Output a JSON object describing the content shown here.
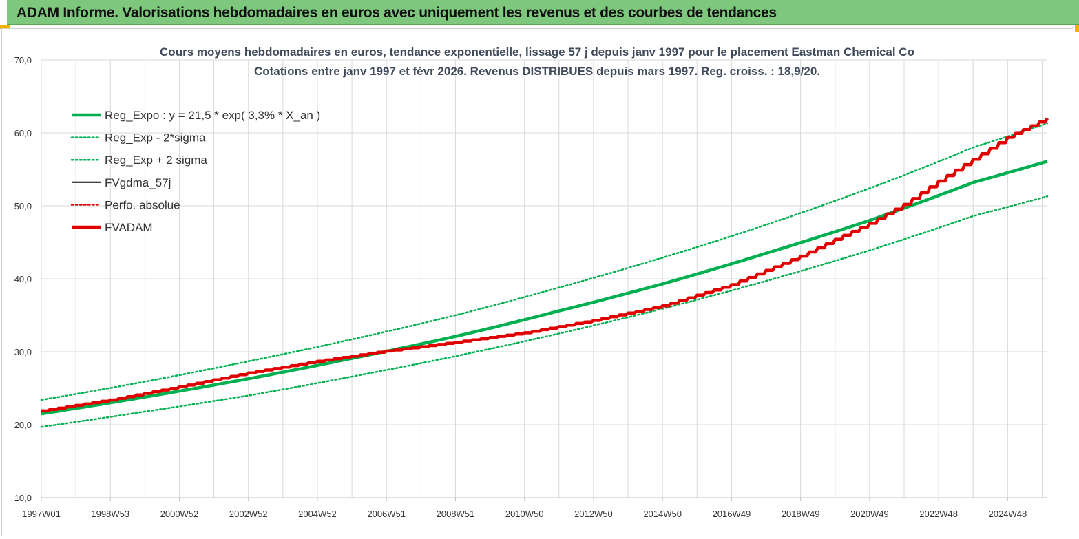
{
  "banner": {
    "title": "ADAM Informe. Valorisations hebdomadaires en euros avec uniquement les revenus et des courbes de tendances"
  },
  "colors": {
    "banner": "#7dc87c",
    "green": "#00b050",
    "red": "#e00000",
    "black": "#000000",
    "grid": "#d9d9d9"
  },
  "chart_data": {
    "type": "line",
    "title_lines": [
      "Cours moyens hebdomadaires en euros, tendance exponentielle, lissage 57 j depuis janv 1997 pour le placement Eastman Chemical Co",
      "Cotations entre janv 1997 et févr 2026. Revenus DISTRIBUES depuis mars 1997. Reg. croiss. : 18,9/20."
    ],
    "x_range": [
      1997.0,
      2026.15
    ],
    "ylim": [
      10,
      70
    ],
    "y_ticks": [
      "10,0",
      "20,0",
      "30,0",
      "40,0",
      "50,0",
      "60,0",
      "70,0"
    ],
    "x_ticks": [
      {
        "label": "1997W01",
        "x": 1997.0
      },
      {
        "label": "1998W53",
        "x": 1999.0
      },
      {
        "label": "2000W52",
        "x": 2001.0
      },
      {
        "label": "2002W52",
        "x": 2003.0
      },
      {
        "label": "2004W52",
        "x": 2005.0
      },
      {
        "label": "2006W51",
        "x": 2007.0
      },
      {
        "label": "2008W51",
        "x": 2009.0
      },
      {
        "label": "2010W50",
        "x": 2011.0
      },
      {
        "label": "2012W50",
        "x": 2013.0
      },
      {
        "label": "2014W50",
        "x": 2015.0
      },
      {
        "label": "2016W49",
        "x": 2017.0
      },
      {
        "label": "2018W49",
        "x": 2019.0
      },
      {
        "label": "2020W49",
        "x": 2021.0
      },
      {
        "label": "2022W48",
        "x": 2023.0
      },
      {
        "label": "2024W48",
        "x": 2025.0
      }
    ],
    "grid": true,
    "legend_position": "top-left",
    "series": [
      {
        "name": "Reg_Expo : y = 21,5 * exp( 3,3% *  X_an )",
        "color": "#00b050",
        "style": "solid-thick",
        "x": [
          1997,
          2000,
          2003,
          2006,
          2009,
          2012,
          2015,
          2018,
          2021,
          2024,
          2026.15
        ],
        "y": [
          21.5,
          23.8,
          26.3,
          29.1,
          32.1,
          35.6,
          39.3,
          43.5,
          48.0,
          53.2,
          56.1
        ]
      },
      {
        "name": "Reg_Exp - 2*sigma",
        "color": "#00b050",
        "style": "dotted",
        "x": [
          1997,
          2000,
          2003,
          2006,
          2009,
          2012,
          2015,
          2018,
          2021,
          2024,
          2026.15
        ],
        "y": [
          19.7,
          21.8,
          24.0,
          26.6,
          29.4,
          32.5,
          35.9,
          39.7,
          43.9,
          48.6,
          51.3
        ]
      },
      {
        "name": "Reg_Exp + 2 sigma",
        "color": "#00b050",
        "style": "dotted",
        "x": [
          1997,
          2000,
          2003,
          2006,
          2009,
          2012,
          2015,
          2018,
          2021,
          2024,
          2026.15
        ],
        "y": [
          23.4,
          25.9,
          28.7,
          31.7,
          35.0,
          38.8,
          42.9,
          47.4,
          52.4,
          58.0,
          61.3
        ]
      },
      {
        "name": "FVgdma_57j",
        "color": "#000000",
        "style": "solid",
        "x": [],
        "y": []
      },
      {
        "name": "Perfo. absolue",
        "color": "#e00000",
        "style": "dotted",
        "x": [],
        "y": []
      },
      {
        "name": "FVADAM",
        "color": "#e00000",
        "style": "solid-thick",
        "x": [
          1997,
          1999,
          2001,
          2003,
          2005,
          2007,
          2009,
          2011,
          2013,
          2015,
          2017,
          2019,
          2020,
          2021,
          2022,
          2023,
          2024,
          2025,
          2026.15
        ],
        "y": [
          21.9,
          23.4,
          25.2,
          27.1,
          28.7,
          30.1,
          31.3,
          32.6,
          34.3,
          36.3,
          39.2,
          43.1,
          45.4,
          47.6,
          50.2,
          53.4,
          56.4,
          59.4,
          62.0
        ]
      }
    ]
  }
}
